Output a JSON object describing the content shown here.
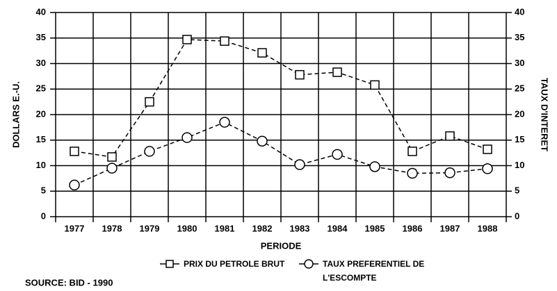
{
  "chart_data": {
    "type": "line",
    "source": "SOURCE: BID - 1990",
    "x_label": "PERIODE",
    "y_label": "DOLLARS E.-U.",
    "y2_label": "TAUX D'INTERET",
    "categories": [
      "1977",
      "1978",
      "1979",
      "1980",
      "1981",
      "1982",
      "1983",
      "1984",
      "1985",
      "1986",
      "1987",
      "1988"
    ],
    "series": [
      {
        "name": "PRIX DU PETROLE BRUT",
        "color": "#000000",
        "marker": "square",
        "values": [
          12.8,
          11.7,
          22.5,
          34.7,
          34.4,
          32.1,
          27.8,
          28.3,
          25.8,
          12.8,
          15.8,
          13.2
        ]
      },
      {
        "name": "TAUX PREFERENTIEL DE L'ESCOMPTE",
        "color": "#000000",
        "marker": "circle",
        "axis": "y2",
        "values": [
          6.2,
          9.5,
          12.8,
          15.5,
          18.5,
          14.8,
          10.2,
          12.2,
          9.8,
          8.5,
          8.6,
          9.4
        ]
      }
    ],
    "ylim": [
      0,
      40
    ],
    "yticks": [
      0,
      5,
      10,
      15,
      20,
      25,
      30,
      35,
      40
    ],
    "y2lim": [
      0,
      40
    ],
    "y2ticks": [
      0,
      5,
      10,
      15,
      20,
      25,
      30,
      35,
      40
    ],
    "grid": true
  }
}
